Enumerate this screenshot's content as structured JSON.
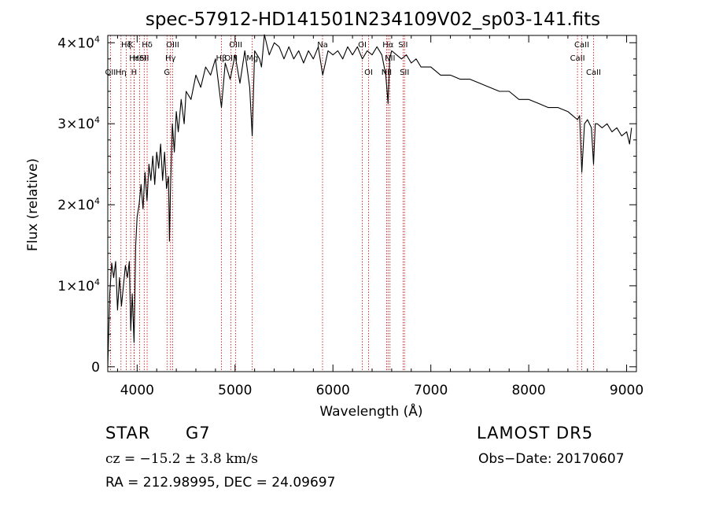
{
  "chart_data": {
    "type": "line",
    "title": "spec-57912-HD141501N234109V02_sp03-141.fits",
    "xlabel": "Wavelength (Å)",
    "ylabel": "Flux (relative)",
    "xlim": [
      3700,
      9100
    ],
    "ylim": [
      -600,
      40900
    ],
    "x_ticks": [
      4000,
      5000,
      6000,
      7000,
      8000,
      9000
    ],
    "x_tick_labels": [
      "4000",
      "5000",
      "6000",
      "7000",
      "8000",
      "9000"
    ],
    "y_ticks": [
      0,
      10000,
      20000,
      30000,
      40000
    ],
    "y_tick_labels": [
      {
        "text": "0",
        "mant": "0",
        "exp": ""
      },
      {
        "text": "1×10^4",
        "mant": "1×10",
        "exp": "4"
      },
      {
        "text": "2×10^4",
        "mant": "2×10",
        "exp": "4"
      },
      {
        "text": "3×10^4",
        "mant": "3×10",
        "exp": "4"
      },
      {
        "text": "4×10^4",
        "mant": "4×10",
        "exp": "4"
      }
    ],
    "grid": false,
    "series": [
      {
        "color": "#000000",
        "x": [
          3700,
          3720,
          3740,
          3760,
          3780,
          3800,
          3820,
          3840,
          3860,
          3880,
          3900,
          3920,
          3935,
          3950,
          3968,
          3985,
          4000,
          4020,
          4040,
          4060,
          4080,
          4101,
          4120,
          4140,
          4160,
          4180,
          4200,
          4220,
          4240,
          4260,
          4280,
          4300,
          4320,
          4330,
          4340,
          4360,
          4380,
          4400,
          4420,
          4450,
          4480,
          4500,
          4550,
          4600,
          4650,
          4700,
          4750,
          4800,
          4861,
          4900,
          4950,
          5000,
          5050,
          5100,
          5150,
          5175,
          5200,
          5250,
          5270,
          5300,
          5350,
          5400,
          5450,
          5500,
          5550,
          5600,
          5650,
          5700,
          5750,
          5800,
          5850,
          5895,
          5950,
          6000,
          6050,
          6100,
          6150,
          6200,
          6250,
          6300,
          6350,
          6400,
          6450,
          6500,
          6540,
          6563,
          6580,
          6600,
          6650,
          6700,
          6750,
          6800,
          6850,
          6900,
          7000,
          7100,
          7200,
          7300,
          7400,
          7500,
          7600,
          7700,
          7800,
          7900,
          8000,
          8100,
          8200,
          8300,
          8400,
          8450,
          8498,
          8520,
          8542,
          8570,
          8600,
          8640,
          8662,
          8680,
          8700,
          8750,
          8800,
          8850,
          8900,
          8950,
          9000,
          9030,
          9050
        ],
        "y": [
          0,
          9000,
          12800,
          11000,
          13000,
          7000,
          11000,
          7500,
          10000,
          12500,
          11000,
          13000,
          4500,
          9000,
          3000,
          15000,
          18500,
          20000,
          22500,
          19500,
          24000,
          20500,
          25000,
          23000,
          26000,
          22500,
          26500,
          24500,
          27500,
          23000,
          26500,
          22000,
          23500,
          15500,
          21500,
          30000,
          26500,
          31500,
          29000,
          33000,
          30000,
          34000,
          33000,
          36000,
          34500,
          37000,
          36000,
          38000,
          32000,
          37500,
          35500,
          38500,
          35000,
          39000,
          34500,
          28500,
          39000,
          38000,
          37000,
          41000,
          38500,
          40000,
          39500,
          38000,
          39500,
          38000,
          39000,
          37500,
          39000,
          38000,
          39500,
          36000,
          39000,
          38500,
          39000,
          38000,
          39500,
          38500,
          39500,
          38000,
          39000,
          38500,
          39500,
          38500,
          36000,
          32500,
          38000,
          39000,
          38500,
          38000,
          38500,
          37500,
          38000,
          37000,
          37000,
          36000,
          36000,
          35500,
          35500,
          35000,
          34500,
          34000,
          34000,
          33000,
          33000,
          32500,
          32000,
          32000,
          31500,
          31000,
          30500,
          31000,
          24000,
          30000,
          30500,
          29500,
          25000,
          30000,
          30000,
          29500,
          30000,
          29000,
          29500,
          28500,
          29000,
          27500,
          29500
        ]
      }
    ],
    "lines": [
      {
        "wl": 3727,
        "name": "OII",
        "row": 2
      },
      {
        "wl": 3835,
        "name": "Hη",
        "row": 2
      },
      {
        "wl": 3889,
        "name": "Hζ",
        "row": 0
      },
      {
        "wl": 3934,
        "name": "K",
        "row": 0
      },
      {
        "wl": 3968,
        "name": "H",
        "row": 2
      },
      {
        "wl": 3970,
        "name": "Hε",
        "row": 1
      },
      {
        "wl": 4026,
        "name": "HeI",
        "row": 1
      },
      {
        "wl": 4072,
        "name": "SII",
        "row": 1
      },
      {
        "wl": 4102,
        "name": "Hδ",
        "row": 0
      },
      {
        "wl": 4305,
        "name": "G",
        "row": 2
      },
      {
        "wl": 4341,
        "name": "Hγ",
        "row": 1
      },
      {
        "wl": 4363,
        "name": "OIII",
        "row": 0
      },
      {
        "wl": 4861,
        "name": "Hβ",
        "row": 1
      },
      {
        "wl": 4959,
        "name": "OIII",
        "row": 1
      },
      {
        "wl": 5007,
        "name": "OIII",
        "row": 0
      },
      {
        "wl": 5176,
        "name": "Mg",
        "row": 1
      },
      {
        "wl": 5894,
        "name": "Na",
        "row": 0
      },
      {
        "wl": 6300,
        "name": "OI",
        "row": 0
      },
      {
        "wl": 6364,
        "name": "OI",
        "row": 2
      },
      {
        "wl": 6548,
        "name": "NII",
        "row": 2
      },
      {
        "wl": 6563,
        "name": "Hα",
        "row": 0
      },
      {
        "wl": 6583,
        "name": "NII",
        "row": 1
      },
      {
        "wl": 6716,
        "name": "SII",
        "row": 0
      },
      {
        "wl": 6731,
        "name": "SII",
        "row": 2
      },
      {
        "wl": 8498,
        "name": "CaII",
        "row": 1
      },
      {
        "wl": 8542,
        "name": "CaII",
        "row": 0
      },
      {
        "wl": 8662,
        "name": "CaII",
        "row": 2
      }
    ]
  },
  "info": {
    "obj_class": "STAR",
    "obj_subclass": "G7",
    "redshift_text": "cz = −15.2 ± 3.8 km/s",
    "survey": "LAMOST DR5",
    "obs_date_text": "Obs−Date: 20170607",
    "coords_text": "RA = 212.98995, DEC =  24.09697"
  },
  "colors": {
    "background": "#ffffff",
    "axes": "#000000",
    "spectrum": "#000000",
    "line_markers": "#cc0000"
  }
}
